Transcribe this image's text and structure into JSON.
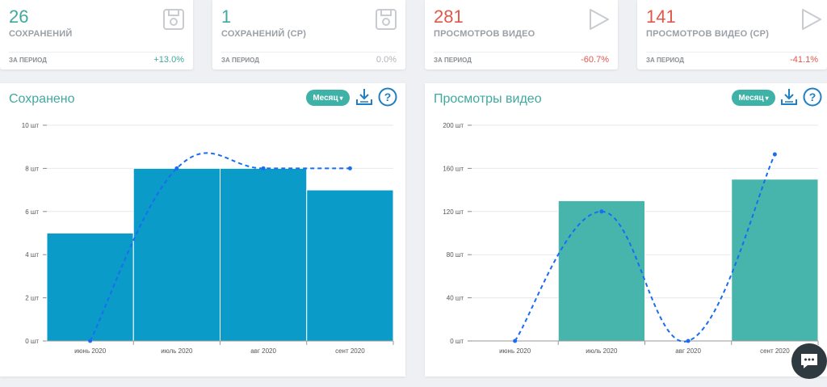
{
  "stats": [
    {
      "value": "26",
      "label": "СОХРАНЕНИЙ",
      "period": "ЗА ПЕРИОД",
      "change": "+13.0%",
      "value_color": "#3fa9a0",
      "change_color": "#3fa9a0",
      "icon": "save-icon"
    },
    {
      "value": "1",
      "label": "СОХРАНЕНИЙ (СР)",
      "period": "ЗА ПЕРИОД",
      "change": "0.0%",
      "value_color": "#3fa9a0",
      "change_color": "#b0b4b8",
      "icon": "save-icon"
    },
    {
      "value": "281",
      "label": "ПРОСМОТРОВ ВИДЕО",
      "period": "ЗА ПЕРИОД",
      "change": "-60.7%",
      "value_color": "#e2574c",
      "change_color": "#e2574c",
      "icon": "play-icon"
    },
    {
      "value": "141",
      "label": "ПРОСМОТРОВ ВИДЕО (СР)",
      "period": "ЗА ПЕРИОД",
      "change": "-41.1%",
      "value_color": "#e2574c",
      "change_color": "#e2574c",
      "icon": "play-icon"
    }
  ],
  "panels": [
    {
      "title": "Сохранено",
      "period_button": "Месяц"
    },
    {
      "title": "Просмотры видео",
      "period_button": "Месяц"
    }
  ],
  "colors": {
    "accent": "#3fb2a8",
    "bar_blue": "#0a9bc8",
    "bar_teal": "#48b5ad",
    "trend_line": "#1a6cf0"
  },
  "chart_data": [
    {
      "type": "bar",
      "title": "Сохранено",
      "categories": [
        "июнь 2020",
        "июль 2020",
        "авг 2020",
        "сент 2020"
      ],
      "values": [
        5,
        8,
        8,
        7
      ],
      "trend_line": [
        0,
        8,
        8,
        8
      ],
      "ylim": [
        0,
        10
      ],
      "y_ticks": [
        "0 шт",
        "2 шт",
        "4 шт",
        "6 шт",
        "8 шт",
        "10 шт"
      ],
      "grid": true
    },
    {
      "type": "bar",
      "title": "Просмотры видео",
      "categories": [
        "июнь 2020",
        "июль 2020",
        "авг 2020",
        "сент 2020"
      ],
      "values": [
        0,
        130,
        0,
        150
      ],
      "trend_line": [
        0,
        120,
        0,
        173
      ],
      "ylim": [
        0,
        200
      ],
      "y_ticks": [
        "0 шт",
        "40 шт",
        "80 шт",
        "120 шт",
        "160 шт",
        "200 шт"
      ],
      "grid": true
    }
  ]
}
